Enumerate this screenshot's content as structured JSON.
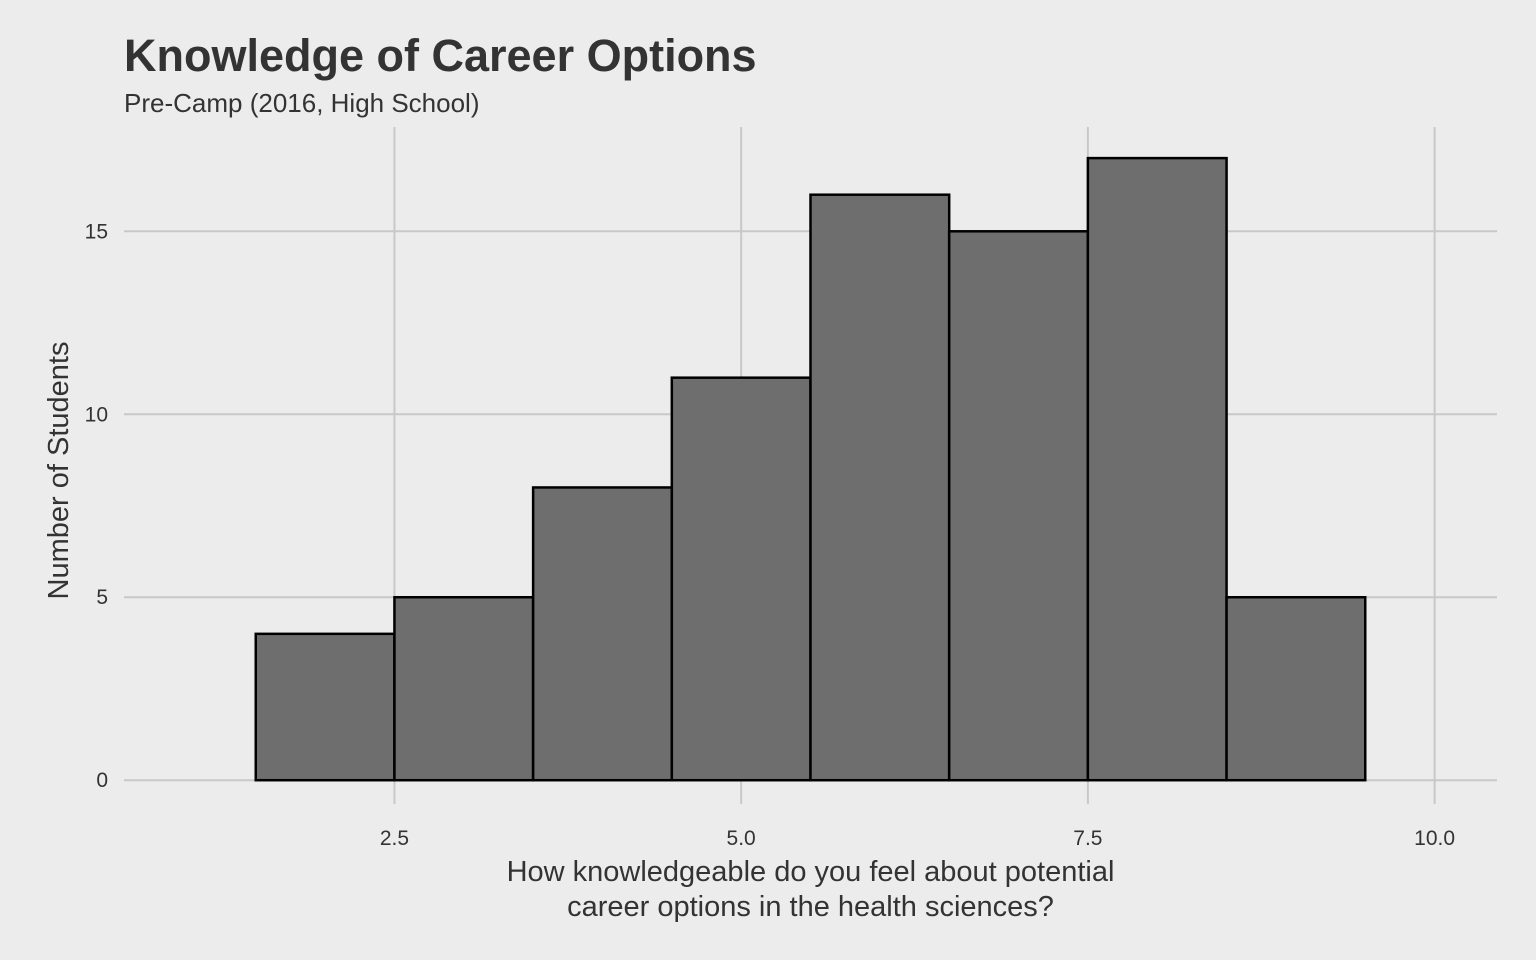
{
  "chart_data": {
    "type": "bar",
    "subtype": "histogram",
    "title": "Knowledge of Career Options",
    "subtitle": "Pre-Camp (2016, High School)",
    "xlabel_lines": [
      "How knowledgeable do you feel about potential",
      "career options in the health sciences?"
    ],
    "ylabel": "Number of Students",
    "bins": [
      {
        "x0": 1.5,
        "x1": 2.5,
        "count": 4
      },
      {
        "x0": 2.5,
        "x1": 3.5,
        "count": 5
      },
      {
        "x0": 3.5,
        "x1": 4.5,
        "count": 8
      },
      {
        "x0": 4.5,
        "x1": 5.5,
        "count": 11
      },
      {
        "x0": 5.5,
        "x1": 6.5,
        "count": 16
      },
      {
        "x0": 6.5,
        "x1": 7.5,
        "count": 15
      },
      {
        "x0": 7.5,
        "x1": 8.5,
        "count": 17
      },
      {
        "x0": 8.5,
        "x1": 9.5,
        "count": 5
      }
    ],
    "xlim": [
      0.55,
      10.45
    ],
    "ylim": [
      -0.65,
      17.85
    ],
    "x_ticks": [
      {
        "value": 2.5,
        "label": "2.5"
      },
      {
        "value": 5.0,
        "label": "5.0"
      },
      {
        "value": 7.5,
        "label": "7.5"
      },
      {
        "value": 10.0,
        "label": "10.0"
      }
    ],
    "y_ticks": [
      {
        "value": 0,
        "label": "0"
      },
      {
        "value": 5,
        "label": "5"
      },
      {
        "value": 10,
        "label": "10"
      },
      {
        "value": 15,
        "label": "15"
      }
    ],
    "grid": true,
    "legend": "none",
    "colors": {
      "background": "#ececec",
      "grid": "#c8c8c8",
      "bar_fill": "#6e6e6e",
      "bar_stroke": "#000000",
      "text": "#333333"
    }
  }
}
